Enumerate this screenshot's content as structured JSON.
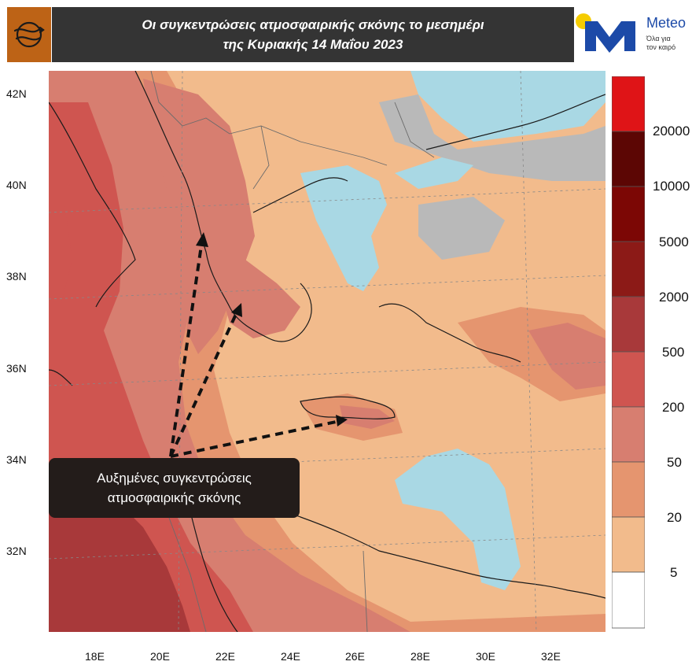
{
  "title": {
    "line1": "Οι συγκεντρώσεις ατμοσφαιρικής σκόνης το μεσημέρι",
    "line2": "της Κυριακής 14 Μαΐου 2023"
  },
  "brand": {
    "name": "Meteo",
    "tagline_line1": "Όλα για",
    "tagline_line2": "τον καιρό",
    "logo_icon": "wind-swirl-icon",
    "logo_color": "#bd6316",
    "brand_color": "#1c4aa8",
    "sun_color": "#f5cc00"
  },
  "annotation": {
    "line1": "Αυξημένες συγκεντρώσεις",
    "line2": "ατμοσφαιρικής σκόνης"
  },
  "lat_labels": [
    "42N",
    "40N",
    "38N",
    "36N",
    "34N",
    "32N"
  ],
  "lon_labels": [
    "18E",
    "20E",
    "22E",
    "24E",
    "26E",
    "28E",
    "30E",
    "32E"
  ],
  "colorbar": {
    "labels": [
      "20000",
      "10000",
      "5000",
      "2000",
      "500",
      "200",
      "50",
      "20",
      "5"
    ],
    "colors": [
      "#df1417",
      "#5c0604",
      "#7c0705",
      "#8c1a17",
      "#a8393a",
      "#cf5550",
      "#d77e70",
      "#e5956f",
      "#f2bb8c",
      "#ffffff"
    ]
  },
  "map_colors": {
    "level_5": "#f2bb8c",
    "level_20": "#e5956f",
    "level_50": "#d77e70",
    "level_200": "#cf5550",
    "level_500": "#a8393a",
    "water_low": "#a9d8e4",
    "missing": "#b9b9b9"
  }
}
